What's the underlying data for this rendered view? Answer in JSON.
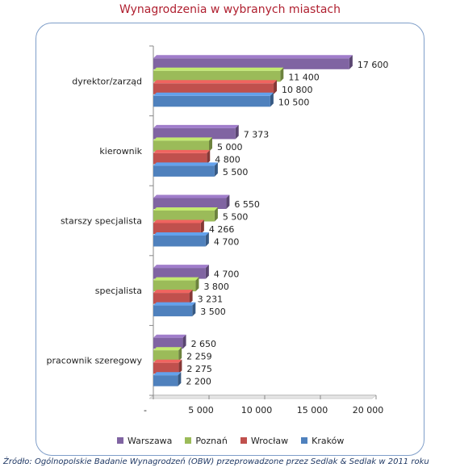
{
  "title": "Wynagrodzenia w wybranych miastach",
  "source": "Źródło: Ogólnopolskie Badanie Wynagrodzeń (OBW) przeprowadzone przez Sedlak & Sedlak w 2011 roku",
  "colors": {
    "Warszawa": "#8064a2",
    "Poznań": "#9bbb59",
    "Wrocław": "#c0504d",
    "Kraków": "#4f81bd"
  },
  "chart_data": {
    "type": "bar",
    "orientation": "horizontal",
    "categories": [
      "dyrektor/zarząd",
      "kierownik",
      "starszy specjalista",
      "specjalista",
      "pracownik szeregowy"
    ],
    "series": [
      {
        "name": "Warszawa",
        "values": [
          17600,
          7373,
          6550,
          4700,
          2650
        ],
        "labels": [
          "17 600",
          "7 373",
          "6 550",
          "4 700",
          "2 650"
        ]
      },
      {
        "name": "Poznań",
        "values": [
          11400,
          5000,
          5500,
          3800,
          2259
        ],
        "labels": [
          "11 400",
          "5 000",
          "5 500",
          "3 800",
          "2 259"
        ]
      },
      {
        "name": "Wrocław",
        "values": [
          10800,
          4800,
          4266,
          3231,
          2275
        ],
        "labels": [
          "10 800",
          "4 800",
          "4 266",
          "3 231",
          "2 275"
        ]
      },
      {
        "name": "Kraków",
        "values": [
          10500,
          5500,
          4700,
          3500,
          2200
        ],
        "labels": [
          "10 500",
          "5 500",
          "4 700",
          "3 500",
          "2 200"
        ]
      }
    ],
    "xlim": [
      0,
      20000
    ],
    "xticks": [
      0,
      5000,
      10000,
      15000,
      20000
    ],
    "xtick_labels": [
      "-",
      "5 000",
      "10 000",
      "15 000",
      "20 000"
    ],
    "legend_position": "bottom",
    "grid": false
  }
}
